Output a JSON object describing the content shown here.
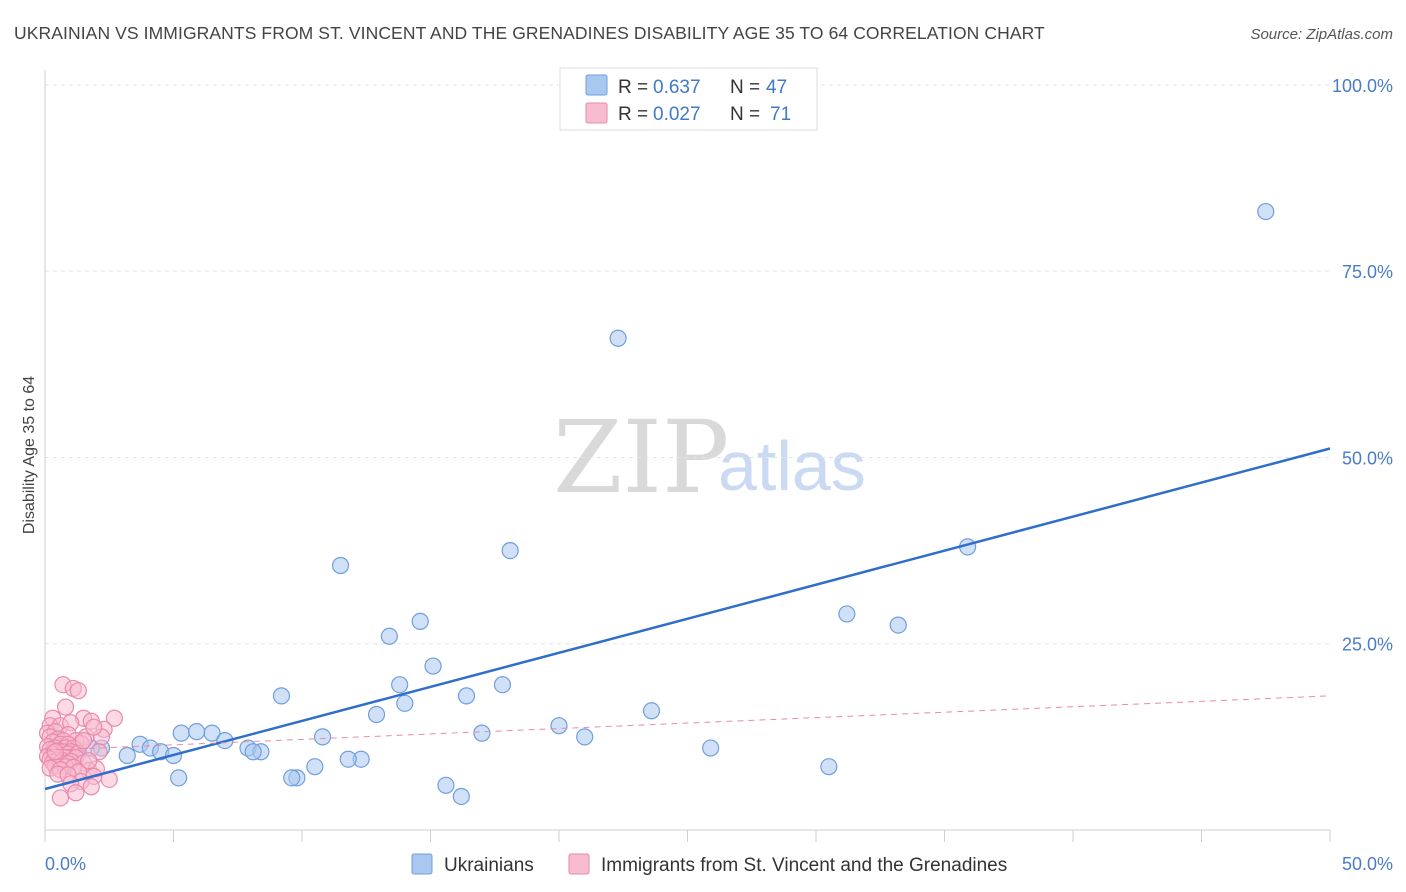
{
  "title": "UKRAINIAN VS IMMIGRANTS FROM ST. VINCENT AND THE GRENADINES DISABILITY AGE 35 TO 64 CORRELATION CHART",
  "source": "Source: ZipAtlas.com",
  "watermark": {
    "zip": "ZIP",
    "atlas": "atlas"
  },
  "legend": {
    "r_label": "R =",
    "n_label": "N =",
    "rows": [
      {
        "r": "0.637",
        "n": "47",
        "color": "#a9c8f0",
        "stroke": "#6f9fdc"
      },
      {
        "r": "0.027",
        "n": "71",
        "color": "#f7bcd0",
        "stroke": "#e98aaa"
      }
    ]
  },
  "chart_data": {
    "type": "scatter",
    "title": "UKRAINIAN VS IMMIGRANTS FROM ST. VINCENT AND THE GRENADINES DISABILITY AGE 35 TO 64 CORRELATION CHART",
    "xlabel": "",
    "ylabel": "Disability Age 35 to 64",
    "xlim": [
      0,
      50
    ],
    "ylim": [
      0,
      102
    ],
    "x_tick_labels": [
      "0.0%",
      "50.0%"
    ],
    "y_ticks": [
      {
        "value": 100,
        "label": "100.0%"
      },
      {
        "value": 75,
        "label": "75.0%"
      },
      {
        "value": 50,
        "label": "50.0%"
      },
      {
        "value": 25,
        "label": "25.0%"
      }
    ],
    "series": [
      {
        "name": "Ukrainians",
        "fill": "#a9c8f0",
        "stroke": "#6f9fdc",
        "line_color": "#2f6fca",
        "trend": {
          "x": [
            0,
            50
          ],
          "y": [
            5.5,
            51.2
          ],
          "dashed": false
        },
        "points": [
          [
            47.5,
            83
          ],
          [
            22.3,
            66
          ],
          [
            35.9,
            38
          ],
          [
            18.1,
            37.5
          ],
          [
            11.5,
            35.5
          ],
          [
            31.2,
            29
          ],
          [
            33.2,
            27.5
          ],
          [
            14.6,
            28
          ],
          [
            13.4,
            26
          ],
          [
            9.2,
            18
          ],
          [
            15.1,
            22
          ],
          [
            13.8,
            19.5
          ],
          [
            17.8,
            19.5
          ],
          [
            16.4,
            18
          ],
          [
            14.0,
            17
          ],
          [
            12.9,
            15.5
          ],
          [
            23.6,
            16
          ],
          [
            20.0,
            14
          ],
          [
            10.8,
            12.5
          ],
          [
            17.0,
            13
          ],
          [
            21.0,
            12.5
          ],
          [
            25.9,
            11
          ],
          [
            5.3,
            13
          ],
          [
            6.5,
            13
          ],
          [
            5.9,
            13.2
          ],
          [
            7.0,
            12
          ],
          [
            3.7,
            11.5
          ],
          [
            2.2,
            11
          ],
          [
            4.1,
            11
          ],
          [
            4.5,
            10.5
          ],
          [
            7.9,
            11
          ],
          [
            8.4,
            10.5
          ],
          [
            8.1,
            10.5
          ],
          [
            3.2,
            10
          ],
          [
            5.0,
            10
          ],
          [
            1.2,
            10
          ],
          [
            1.8,
            11
          ],
          [
            12.3,
            9.5
          ],
          [
            11.8,
            9.5
          ],
          [
            10.5,
            8.5
          ],
          [
            9.8,
            7
          ],
          [
            30.5,
            8.5
          ],
          [
            5.2,
            7
          ],
          [
            9.6,
            7
          ],
          [
            15.6,
            6
          ],
          [
            16.2,
            4.5
          ],
          [
            0.9,
            11
          ]
        ]
      },
      {
        "name": "Immigrants from St. Vincent and the Grenadines",
        "fill": "#f7bcd0",
        "stroke": "#e98aaa",
        "line_color": "#e98aaa",
        "trend": {
          "x": [
            0,
            50
          ],
          "y": [
            10.7,
            18.0
          ],
          "dashed": true
        },
        "points": [
          [
            0.7,
            19.5
          ],
          [
            1.1,
            19
          ],
          [
            1.3,
            18.7
          ],
          [
            0.8,
            16.5
          ],
          [
            0.3,
            15
          ],
          [
            1.5,
            15
          ],
          [
            1.8,
            14.6
          ],
          [
            2.7,
            15
          ],
          [
            0.2,
            14
          ],
          [
            0.6,
            14
          ],
          [
            1.0,
            14.4
          ],
          [
            2.3,
            13.5
          ],
          [
            0.1,
            13
          ],
          [
            0.4,
            13.2
          ],
          [
            0.9,
            12.8
          ],
          [
            1.6,
            12.5
          ],
          [
            0.2,
            12.5
          ],
          [
            0.5,
            12.2
          ],
          [
            0.7,
            12
          ],
          [
            1.2,
            12
          ],
          [
            0.3,
            11.8
          ],
          [
            0.6,
            11.5
          ],
          [
            0.9,
            11.5
          ],
          [
            1.4,
            11.6
          ],
          [
            0.1,
            11.2
          ],
          [
            0.4,
            11
          ],
          [
            0.8,
            11
          ],
          [
            1.1,
            11
          ],
          [
            0.2,
            10.8
          ],
          [
            0.5,
            10.6
          ],
          [
            0.7,
            10.5
          ],
          [
            1.0,
            10.5
          ],
          [
            0.3,
            10.2
          ],
          [
            0.6,
            10.0
          ],
          [
            0.9,
            10.2
          ],
          [
            1.3,
            10.3
          ],
          [
            0.1,
            9.9
          ],
          [
            0.4,
            9.8
          ],
          [
            0.8,
            9.7
          ],
          [
            1.2,
            9.7
          ],
          [
            0.2,
            9.5
          ],
          [
            0.5,
            9.4
          ],
          [
            0.7,
            9.3
          ],
          [
            1.0,
            9.2
          ],
          [
            0.3,
            9.1
          ],
          [
            0.6,
            9.0
          ],
          [
            0.9,
            8.9
          ],
          [
            1.5,
            9.0
          ],
          [
            0.4,
            8.6
          ],
          [
            0.8,
            8.5
          ],
          [
            1.1,
            8.4
          ],
          [
            0.2,
            8.3
          ],
          [
            0.6,
            8.1
          ],
          [
            1.7,
            8.0
          ],
          [
            2.0,
            8.2
          ],
          [
            1.3,
            7.8
          ],
          [
            0.5,
            7.5
          ],
          [
            0.9,
            7.4
          ],
          [
            1.9,
            7.2
          ],
          [
            2.5,
            6.8
          ],
          [
            1.4,
            6.5
          ],
          [
            1.0,
            6.2
          ],
          [
            1.8,
            5.8
          ],
          [
            1.2,
            5.0
          ],
          [
            0.6,
            4.3
          ],
          [
            2.2,
            12.5
          ],
          [
            1.9,
            13.8
          ],
          [
            2.1,
            10.5
          ],
          [
            1.5,
            12.0
          ],
          [
            0.4,
            10.5
          ],
          [
            1.7,
            9.3
          ]
        ]
      }
    ]
  },
  "bottom_legend": [
    {
      "label": "Ukrainians",
      "fill": "#a9c8f0",
      "stroke": "#6f9fdc"
    },
    {
      "label": "Immigrants from St. Vincent and the Grenadines",
      "fill": "#f7bcd0",
      "stroke": "#e98aaa"
    }
  ]
}
